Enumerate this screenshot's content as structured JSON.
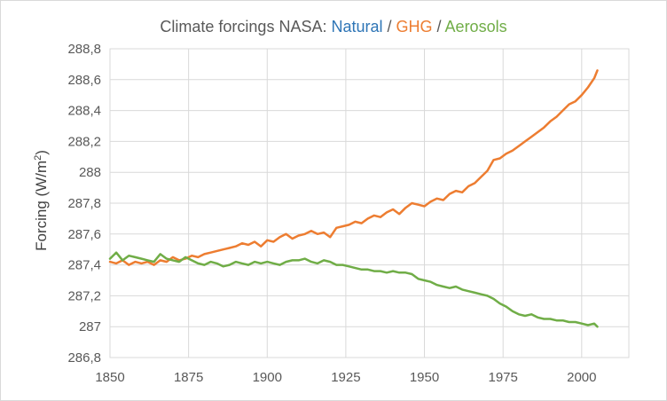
{
  "colors": {
    "natural": "#2E75B6",
    "ghg": "#ED7D31",
    "aerosols": "#70AD47",
    "text": "#595959",
    "grid": "#D9D9D9"
  },
  "chart_data": {
    "type": "line",
    "title": "Climate forcings NASA: Natural / GHG / Aerosols",
    "title_parts": [
      {
        "text": "Climate forcings NASA: ",
        "color": "#595959"
      },
      {
        "text": "Natural",
        "color": "#2E75B6"
      },
      {
        "text": " / ",
        "color": "#595959"
      },
      {
        "text": "GHG",
        "color": "#ED7D31"
      },
      {
        "text": " / ",
        "color": "#595959"
      },
      {
        "text": "Aerosols",
        "color": "#70AD47"
      }
    ],
    "xlabel": "",
    "ylabel": "Forcing (W/m",
    "ylabel_sup": "2",
    "ylabel_close": ")",
    "xlim": [
      1850,
      2015
    ],
    "ylim": [
      286.8,
      288.8
    ],
    "xticks": [
      1850,
      1875,
      1900,
      1925,
      1950,
      1975,
      2000
    ],
    "yticks": [
      286.8,
      287.0,
      287.2,
      287.4,
      287.6,
      287.8,
      288.0,
      288.2,
      288.4,
      288.6,
      288.8
    ],
    "ytick_labels": [
      "286,8",
      "287",
      "287,2",
      "287,4",
      "287,6",
      "287,8",
      "288",
      "288,2",
      "288,4",
      "288,6",
      "288,8"
    ],
    "xtick_labels": [
      "1850",
      "1875",
      "1900",
      "1925",
      "1950",
      "1975",
      "2000"
    ],
    "grid": true,
    "series": [
      {
        "name": "GHG",
        "color": "#ED7D31",
        "x": [
          1850,
          1852,
          1854,
          1856,
          1858,
          1860,
          1862,
          1864,
          1866,
          1868,
          1870,
          1872,
          1874,
          1876,
          1878,
          1880,
          1882,
          1884,
          1886,
          1888,
          1890,
          1892,
          1894,
          1896,
          1898,
          1900,
          1902,
          1904,
          1906,
          1908,
          1910,
          1912,
          1914,
          1916,
          1918,
          1920,
          1922,
          1924,
          1926,
          1928,
          1930,
          1932,
          1934,
          1936,
          1938,
          1940,
          1942,
          1944,
          1946,
          1948,
          1950,
          1952,
          1954,
          1956,
          1958,
          1960,
          1962,
          1964,
          1966,
          1968,
          1970,
          1972,
          1974,
          1976,
          1978,
          1980,
          1982,
          1984,
          1986,
          1988,
          1990,
          1992,
          1994,
          1996,
          1998,
          2000,
          2002,
          2004,
          2005
        ],
        "values": [
          287.42,
          287.41,
          287.43,
          287.4,
          287.42,
          287.41,
          287.42,
          287.4,
          287.43,
          287.42,
          287.45,
          287.43,
          287.44,
          287.46,
          287.45,
          287.47,
          287.48,
          287.49,
          287.5,
          287.51,
          287.52,
          287.54,
          287.53,
          287.55,
          287.52,
          287.56,
          287.55,
          287.58,
          287.6,
          287.57,
          287.59,
          287.6,
          287.62,
          287.6,
          287.61,
          287.58,
          287.64,
          287.65,
          287.66,
          287.68,
          287.67,
          287.7,
          287.72,
          287.71,
          287.74,
          287.76,
          287.73,
          287.77,
          287.8,
          287.79,
          287.78,
          287.81,
          287.83,
          287.82,
          287.86,
          287.88,
          287.87,
          287.91,
          287.93,
          287.97,
          288.01,
          288.08,
          288.09,
          288.12,
          288.14,
          288.17,
          288.2,
          288.23,
          288.26,
          288.29,
          288.33,
          288.36,
          288.4,
          288.44,
          288.46,
          288.5,
          288.55,
          288.61,
          288.66
        ]
      },
      {
        "name": "Aerosols",
        "color": "#70AD47",
        "x": [
          1850,
          1852,
          1854,
          1856,
          1858,
          1860,
          1862,
          1864,
          1866,
          1868,
          1870,
          1872,
          1874,
          1876,
          1878,
          1880,
          1882,
          1884,
          1886,
          1888,
          1890,
          1892,
          1894,
          1896,
          1898,
          1900,
          1902,
          1904,
          1906,
          1908,
          1910,
          1912,
          1914,
          1916,
          1918,
          1920,
          1922,
          1924,
          1926,
          1928,
          1930,
          1932,
          1934,
          1936,
          1938,
          1940,
          1942,
          1944,
          1946,
          1948,
          1950,
          1952,
          1954,
          1956,
          1958,
          1960,
          1962,
          1964,
          1966,
          1968,
          1970,
          1972,
          1974,
          1976,
          1978,
          1980,
          1982,
          1984,
          1986,
          1988,
          1990,
          1992,
          1994,
          1996,
          1998,
          2000,
          2002,
          2004,
          2005
        ],
        "values": [
          287.44,
          287.48,
          287.43,
          287.46,
          287.45,
          287.44,
          287.43,
          287.42,
          287.47,
          287.44,
          287.43,
          287.42,
          287.45,
          287.43,
          287.41,
          287.4,
          287.42,
          287.41,
          287.39,
          287.4,
          287.42,
          287.41,
          287.4,
          287.42,
          287.41,
          287.42,
          287.41,
          287.4,
          287.42,
          287.43,
          287.43,
          287.44,
          287.42,
          287.41,
          287.43,
          287.42,
          287.4,
          287.4,
          287.39,
          287.38,
          287.37,
          287.37,
          287.36,
          287.36,
          287.35,
          287.36,
          287.35,
          287.35,
          287.34,
          287.31,
          287.3,
          287.29,
          287.27,
          287.26,
          287.25,
          287.26,
          287.24,
          287.23,
          287.22,
          287.21,
          287.2,
          287.18,
          287.15,
          287.13,
          287.1,
          287.08,
          287.07,
          287.08,
          287.06,
          287.05,
          287.05,
          287.04,
          287.04,
          287.03,
          287.03,
          287.02,
          287.01,
          287.02,
          287.0
        ]
      }
    ]
  }
}
